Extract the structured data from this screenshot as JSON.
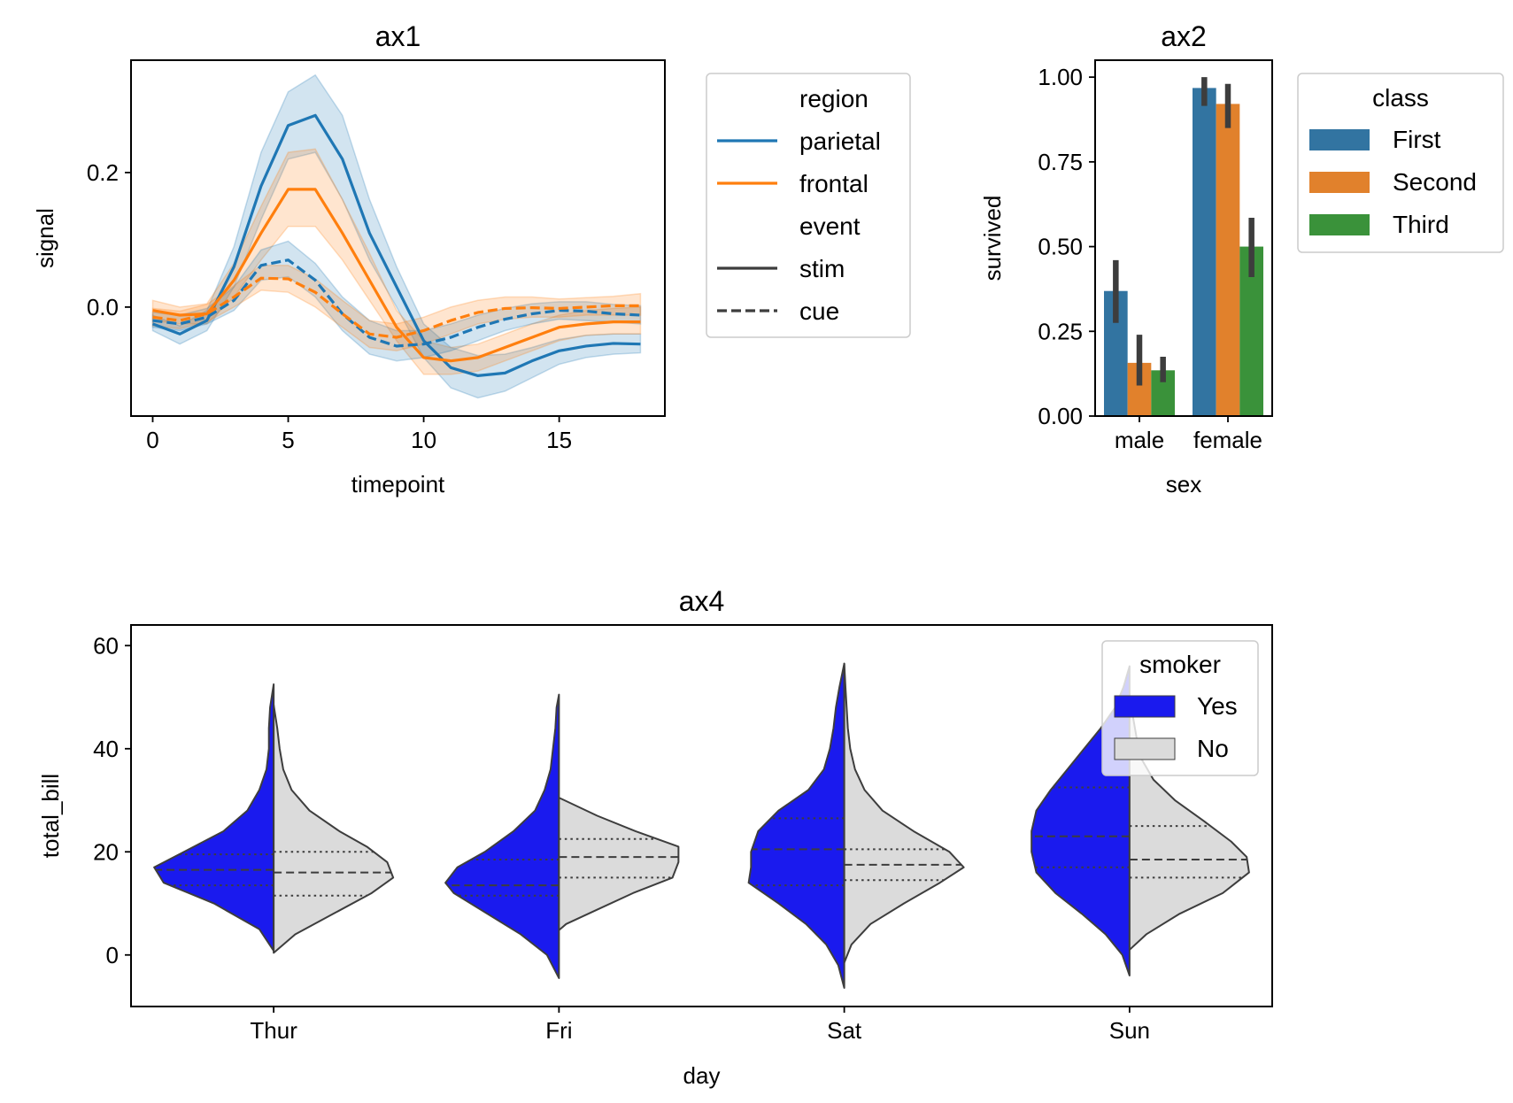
{
  "chart_data": [
    {
      "id": "ax1",
      "type": "line",
      "title": "ax1",
      "xlabel": "timepoint",
      "ylabel": "signal",
      "xlim": [
        -0.8,
        18.9
      ],
      "ylim": [
        -0.162,
        0.367
      ],
      "xticks": [
        0,
        5,
        10,
        15
      ],
      "yticks": [
        0.0,
        0.2
      ],
      "ytick_labels": [
        "0.0",
        "0.2"
      ],
      "x": [
        0,
        1,
        2,
        3,
        4,
        5,
        6,
        7,
        8,
        9,
        10,
        11,
        12,
        13,
        14,
        15,
        16,
        17,
        18
      ],
      "legend": {
        "placement": "outside-right",
        "region_title": "region",
        "event_title": "event",
        "entries": [
          {
            "label": "parietal",
            "kind": "color",
            "color": "#1f77b4"
          },
          {
            "label": "frontal",
            "kind": "color",
            "color": "#ff7f0e"
          },
          {
            "label": "stim",
            "kind": "style",
            "dash": "solid"
          },
          {
            "label": "cue",
            "kind": "style",
            "dash": "dashed"
          }
        ]
      },
      "series": [
        {
          "region": "parietal",
          "event": "stim",
          "color": "#1f77b4",
          "dash": "solid",
          "y": [
            -0.025,
            -0.04,
            -0.02,
            0.06,
            0.18,
            0.27,
            0.285,
            0.22,
            0.11,
            0.03,
            -0.05,
            -0.09,
            -0.102,
            -0.098,
            -0.08,
            -0.065,
            -0.058,
            -0.054,
            -0.055
          ],
          "lo": [
            -0.035,
            -0.055,
            -0.035,
            0.03,
            0.13,
            0.22,
            0.23,
            0.16,
            0.07,
            0.0,
            -0.075,
            -0.12,
            -0.135,
            -0.125,
            -0.105,
            -0.085,
            -0.075,
            -0.07,
            -0.068
          ],
          "hi": [
            -0.012,
            -0.028,
            -0.005,
            0.09,
            0.23,
            0.32,
            0.345,
            0.285,
            0.16,
            0.06,
            -0.025,
            -0.06,
            -0.072,
            -0.07,
            -0.06,
            -0.048,
            -0.042,
            -0.04,
            -0.04
          ]
        },
        {
          "region": "frontal",
          "event": "stim",
          "color": "#ff7f0e",
          "dash": "solid",
          "y": [
            -0.005,
            -0.012,
            -0.01,
            0.04,
            0.11,
            0.175,
            0.175,
            0.11,
            0.04,
            -0.03,
            -0.075,
            -0.08,
            -0.075,
            -0.06,
            -0.045,
            -0.03,
            -0.025,
            -0.022,
            -0.022
          ],
          "lo": [
            -0.02,
            -0.025,
            -0.025,
            0.015,
            0.07,
            0.12,
            0.12,
            0.07,
            0.01,
            -0.05,
            -0.1,
            -0.1,
            -0.095,
            -0.08,
            -0.065,
            -0.05,
            -0.042,
            -0.04,
            -0.04
          ],
          "hi": [
            0.01,
            0.0,
            0.005,
            0.065,
            0.15,
            0.23,
            0.235,
            0.16,
            0.08,
            -0.005,
            -0.05,
            -0.06,
            -0.055,
            -0.04,
            -0.025,
            -0.012,
            -0.005,
            -0.002,
            0.0
          ]
        },
        {
          "region": "parietal",
          "event": "cue",
          "color": "#1f77b4",
          "dash": "dashed",
          "y": [
            -0.02,
            -0.025,
            -0.015,
            0.01,
            0.062,
            0.07,
            0.04,
            -0.01,
            -0.045,
            -0.058,
            -0.055,
            -0.045,
            -0.03,
            -0.018,
            -0.01,
            -0.005,
            -0.006,
            -0.01,
            -0.012
          ],
          "lo": [
            -0.03,
            -0.035,
            -0.025,
            -0.005,
            0.04,
            0.045,
            0.015,
            -0.035,
            -0.07,
            -0.08,
            -0.075,
            -0.065,
            -0.05,
            -0.035,
            -0.025,
            -0.018,
            -0.02,
            -0.022,
            -0.025
          ],
          "hi": [
            -0.008,
            -0.012,
            -0.002,
            0.03,
            0.085,
            0.098,
            0.065,
            0.015,
            -0.02,
            -0.035,
            -0.035,
            -0.025,
            -0.012,
            -0.002,
            0.005,
            0.008,
            0.008,
            0.004,
            0.002
          ]
        },
        {
          "region": "frontal",
          "event": "cue",
          "color": "#ff7f0e",
          "dash": "dashed",
          "y": [
            -0.015,
            -0.02,
            -0.01,
            0.015,
            0.043,
            0.042,
            0.022,
            -0.01,
            -0.04,
            -0.045,
            -0.035,
            -0.02,
            -0.008,
            -0.002,
            -0.001,
            -0.002,
            0.0,
            0.002,
            0.002
          ],
          "lo": [
            -0.028,
            -0.032,
            -0.022,
            0.0,
            0.025,
            0.022,
            0.0,
            -0.03,
            -0.06,
            -0.065,
            -0.055,
            -0.04,
            -0.025,
            -0.018,
            -0.015,
            -0.015,
            -0.012,
            -0.012,
            -0.012
          ],
          "hi": [
            -0.002,
            -0.006,
            0.004,
            0.032,
            0.062,
            0.062,
            0.042,
            0.01,
            -0.02,
            -0.025,
            -0.015,
            0.0,
            0.01,
            0.015,
            0.015,
            0.012,
            0.014,
            0.016,
            0.02
          ]
        }
      ]
    },
    {
      "id": "ax2",
      "type": "bar",
      "title": "ax2",
      "xlabel": "sex",
      "ylabel": "survived",
      "ylim": [
        0.0,
        1.05
      ],
      "yticks": [
        0.0,
        0.25,
        0.5,
        0.75,
        1.0
      ],
      "ytick_labels": [
        "0.00",
        "0.25",
        "0.50",
        "0.75",
        "1.00"
      ],
      "categories": [
        "male",
        "female"
      ],
      "legend": {
        "placement": "outside-right",
        "title": "class"
      },
      "series": [
        {
          "name": "First",
          "color": "#3274a1",
          "values": [
            0.369,
            0.968
          ],
          "ci_low": [
            0.275,
            0.915
          ],
          "ci_high": [
            0.46,
            1.0
          ]
        },
        {
          "name": "Second",
          "color": "#e1812c",
          "values": [
            0.157,
            0.921
          ],
          "ci_low": [
            0.09,
            0.85
          ],
          "ci_high": [
            0.24,
            0.98
          ]
        },
        {
          "name": "Third",
          "color": "#3a923a",
          "values": [
            0.135,
            0.5
          ],
          "ci_low": [
            0.1,
            0.41
          ],
          "ci_high": [
            0.175,
            0.585
          ]
        }
      ]
    },
    {
      "id": "ax4",
      "type": "violin",
      "title": "ax4",
      "xlabel": "day",
      "ylabel": "total_bill",
      "ylim": [
        -10,
        64
      ],
      "yticks": [
        0,
        20,
        40,
        60
      ],
      "ytick_labels": [
        "0",
        "20",
        "40",
        "60"
      ],
      "categories": [
        "Thur",
        "Fri",
        "Sat",
        "Sun"
      ],
      "legend": {
        "placement": "top-right",
        "title": "smoker"
      },
      "series": [
        {
          "name": "Yes",
          "color": "#1a1aee",
          "side": "left",
          "violins": [
            {
              "y": [
                0.8,
                5,
                10,
                14,
                17,
                20,
                24,
                28,
                32,
                36,
                40,
                44,
                48,
                52.5
              ],
              "w": [
                0.0,
                0.12,
                0.5,
                0.92,
                1.0,
                0.75,
                0.42,
                0.22,
                0.12,
                0.06,
                0.04,
                0.04,
                0.03,
                0.0
              ]
            },
            {
              "y": [
                -4.5,
                0,
                4,
                8,
                12,
                14,
                17,
                20,
                24,
                28,
                32,
                36,
                40,
                44,
                48,
                50.5
              ],
              "w": [
                0.0,
                0.1,
                0.32,
                0.6,
                0.88,
                0.95,
                0.85,
                0.62,
                0.38,
                0.2,
                0.12,
                0.07,
                0.05,
                0.03,
                0.02,
                0.0
              ]
            },
            {
              "y": [
                -6.4,
                -2,
                2,
                6,
                10,
                14,
                17,
                20,
                24,
                28,
                32,
                36,
                40,
                44,
                48,
                52,
                56.5
              ],
              "w": [
                0.0,
                0.05,
                0.15,
                0.32,
                0.55,
                0.8,
                0.78,
                0.78,
                0.72,
                0.55,
                0.3,
                0.17,
                0.12,
                0.09,
                0.07,
                0.04,
                0.0
              ]
            },
            {
              "y": [
                -4,
                0,
                4,
                8,
                12,
                16,
                20,
                24,
                28,
                32,
                36,
                40,
                44,
                48,
                52,
                56
              ],
              "w": [
                0.0,
                0.06,
                0.2,
                0.4,
                0.62,
                0.78,
                0.82,
                0.82,
                0.78,
                0.66,
                0.52,
                0.38,
                0.24,
                0.12,
                0.05,
                0.0
              ]
            }
          ],
          "quartiles": [
            [
              13.5,
              16.5,
              19.5
            ],
            [
              11.5,
              13.5,
              18.5
            ],
            [
              13.5,
              20.5,
              26.5
            ],
            [
              17.0,
              23.0,
              32.5
            ]
          ]
        },
        {
          "name": "No",
          "color": "#dbdbdb",
          "side": "right",
          "violins": [
            {
              "y": [
                0.4,
                4,
                8,
                12,
                15,
                18,
                21,
                24,
                28,
                32,
                36,
                40,
                44,
                48.5
              ],
              "w": [
                0.0,
                0.18,
                0.5,
                0.82,
                1.0,
                0.95,
                0.78,
                0.55,
                0.3,
                0.15,
                0.08,
                0.05,
                0.03,
                0.0
              ]
            },
            {
              "y": [
                4.8,
                6,
                9,
                12,
                15,
                18,
                21,
                24,
                27,
                30.5
              ],
              "w": [
                0.0,
                0.06,
                0.34,
                0.62,
                0.95,
                1.0,
                1.0,
                0.64,
                0.32,
                0.0
              ]
            },
            {
              "y": [
                -1.5,
                2,
                6,
                10,
                14,
                17,
                20,
                24,
                28,
                32,
                36,
                40,
                44,
                48,
                52,
                56.5
              ],
              "w": [
                0.0,
                0.06,
                0.22,
                0.5,
                0.8,
                1.0,
                0.88,
                0.58,
                0.32,
                0.17,
                0.09,
                0.05,
                0.03,
                0.02,
                0.01,
                0.0
              ]
            },
            {
              "y": [
                1.0,
                4,
                8,
                12,
                16,
                19,
                22,
                26,
                30,
                34,
                38,
                42,
                46,
                49
              ],
              "w": [
                0.0,
                0.14,
                0.42,
                0.78,
                1.0,
                0.98,
                0.85,
                0.62,
                0.38,
                0.2,
                0.1,
                0.06,
                0.03,
                0.0
              ]
            }
          ],
          "quartiles": [
            [
              11.5,
              16.0,
              20.0
            ],
            [
              15.0,
              19.0,
              22.5
            ],
            [
              14.5,
              17.5,
              20.5
            ],
            [
              15.0,
              18.5,
              25.0
            ]
          ]
        }
      ]
    }
  ]
}
